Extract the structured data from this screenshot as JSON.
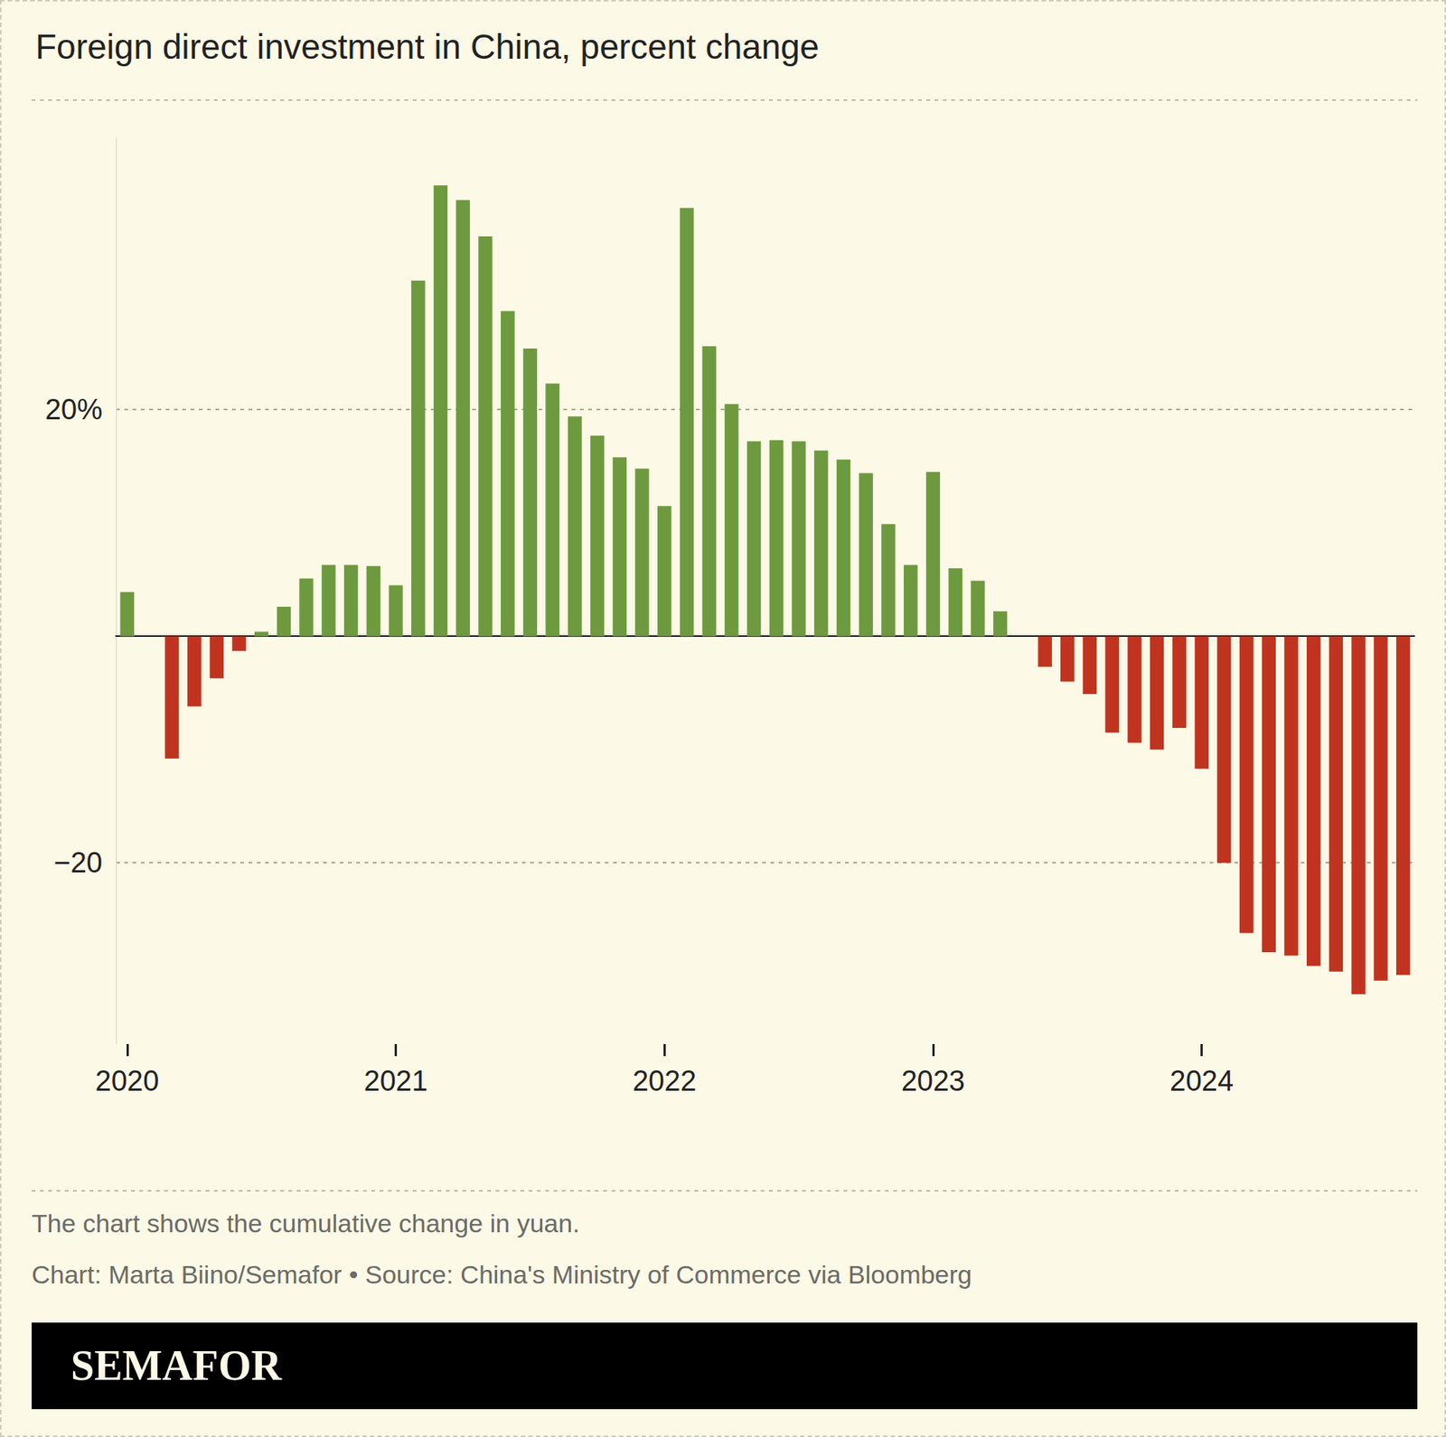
{
  "chart_data": {
    "type": "bar",
    "title": "Foreign direct investment in China, percent change",
    "caption": "The chart shows the cumulative change in yuan.",
    "source": "Chart: Marta Biino/Semafor • Source: China's Ministry of Commerce via Bloomberg",
    "branding": "SEMAFOR",
    "categories": [
      "2020",
      null,
      null,
      null,
      null,
      null,
      null,
      null,
      null,
      null,
      null,
      null,
      "2021",
      null,
      null,
      null,
      null,
      null,
      null,
      null,
      null,
      null,
      null,
      null,
      "2022",
      null,
      null,
      null,
      null,
      null,
      null,
      null,
      null,
      null,
      null,
      null,
      "2023",
      null,
      null,
      null,
      null,
      null,
      null,
      null,
      null,
      null,
      null,
      null,
      "2024",
      null,
      null,
      null,
      null,
      null,
      null,
      null,
      null,
      null
    ],
    "values": [
      3.9,
      null,
      -10.8,
      -6.2,
      -3.7,
      -1.3,
      0.4,
      2.6,
      5.1,
      6.3,
      6.3,
      6.2,
      4.5,
      31.4,
      39.8,
      38.5,
      35.3,
      28.7,
      25.4,
      22.3,
      19.4,
      17.7,
      15.8,
      14.8,
      11.5,
      37.8,
      25.6,
      20.5,
      17.2,
      17.3,
      17.2,
      16.4,
      15.6,
      14.4,
      9.9,
      6.3,
      14.5,
      6.0,
      4.9,
      2.2,
      null,
      -2.7,
      -4.0,
      -5.1,
      -8.5,
      -9.4,
      -10.0,
      -8.1,
      -11.7,
      -20.0,
      -26.2,
      -27.9,
      -28.2,
      -29.1,
      -29.6,
      -31.6,
      -30.4,
      -29.9
    ],
    "colors": [
      "#6e9a3f",
      "#6e9a3f",
      "#c0341f",
      "#c0341f",
      "#c0341f",
      "#c0341f",
      "#6e9a3f",
      "#6e9a3f",
      "#6e9a3f",
      "#6e9a3f",
      "#6e9a3f",
      "#6e9a3f",
      "#6e9a3f",
      "#6e9a3f",
      "#6e9a3f",
      "#6e9a3f",
      "#6e9a3f",
      "#6e9a3f",
      "#6e9a3f",
      "#6e9a3f",
      "#6e9a3f",
      "#6e9a3f",
      "#6e9a3f",
      "#6e9a3f",
      "#6e9a3f",
      "#6e9a3f",
      "#6e9a3f",
      "#6e9a3f",
      "#6e9a3f",
      "#6e9a3f",
      "#6e9a3f",
      "#6e9a3f",
      "#6e9a3f",
      "#6e9a3f",
      "#6e9a3f",
      "#6e9a3f",
      "#6e9a3f",
      "#6e9a3f",
      "#6e9a3f",
      "#6e9a3f",
      "#c0341f",
      "#c0341f",
      "#c0341f",
      "#c0341f",
      "#c0341f",
      "#c0341f",
      "#c0341f",
      "#c0341f",
      "#c0341f",
      "#c0341f",
      "#c0341f",
      "#c0341f",
      "#c0341f",
      "#c0341f",
      "#c0341f",
      "#c0341f",
      "#c0341f",
      "#c0341f"
    ],
    "ylim": [
      -36,
      44
    ],
    "yticks": [
      {
        "value": -20,
        "label": "−20"
      },
      {
        "value": 20,
        "label": "20%"
      }
    ],
    "grid": true
  }
}
